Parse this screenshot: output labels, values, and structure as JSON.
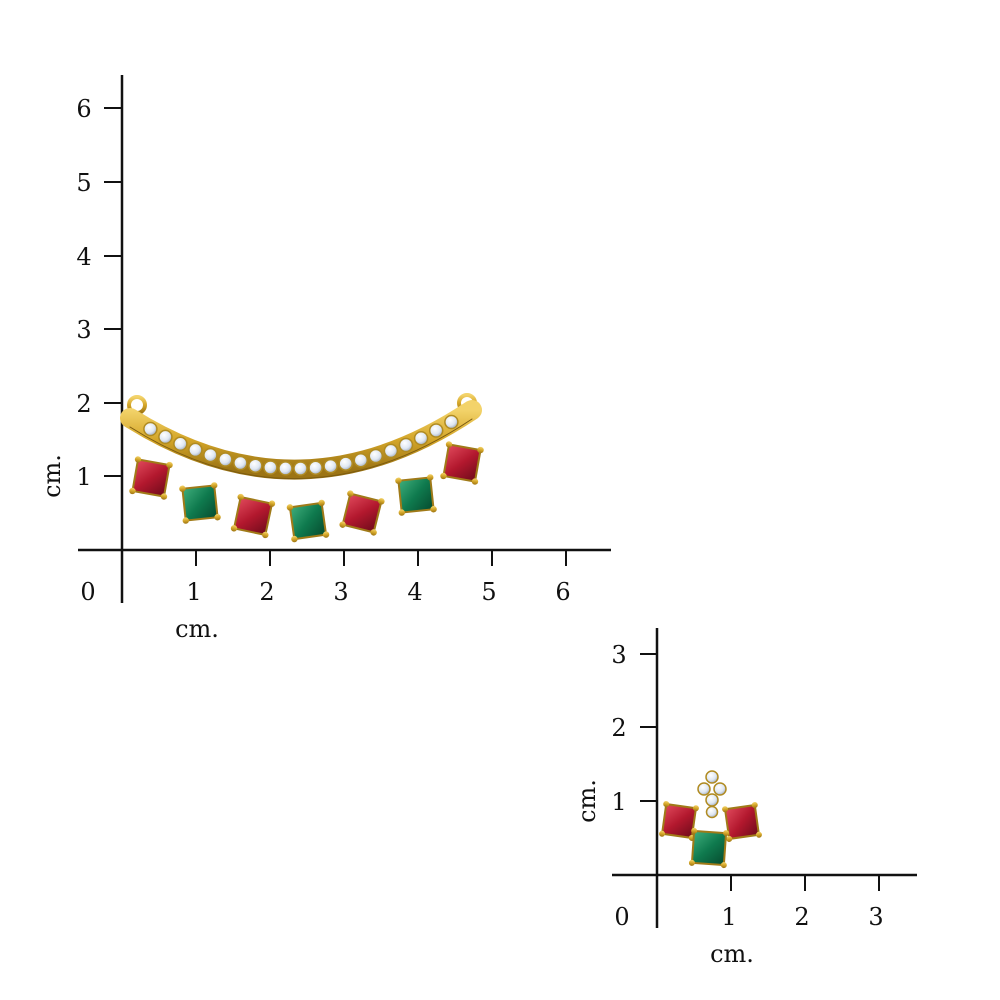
{
  "product_measurement_image": {
    "pendant": {
      "x_axis": {
        "unit_label": "cm.",
        "origin_label": "0",
        "tick_labels": [
          "1",
          "2",
          "3",
          "4",
          "5",
          "6"
        ]
      },
      "y_axis": {
        "unit_label": "cm.",
        "tick_labels": [
          "1",
          "2",
          "3",
          "4",
          "5",
          "6"
        ]
      },
      "gem_colors": {
        "ruby": "#b3182e",
        "emerald": "#0f7a4e",
        "diamond": "#dfe7f2",
        "gold": "#d4a629"
      }
    },
    "earring": {
      "x_axis": {
        "unit_label": "cm.",
        "origin_label": "0",
        "tick_labels": [
          "1",
          "2",
          "3"
        ]
      },
      "y_axis": {
        "unit_label": "cm.",
        "tick_labels": [
          "1",
          "2",
          "3"
        ]
      }
    }
  }
}
